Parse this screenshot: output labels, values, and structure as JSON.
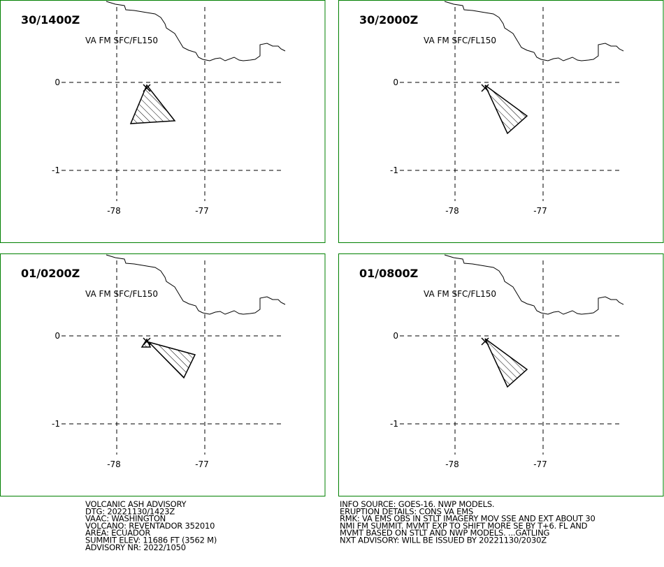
{
  "panels": [
    {
      "time": "30/1400Z",
      "level": "VA FM SFC/FL150"
    },
    {
      "time": "30/2000Z",
      "level": "VA FM SFC/FL150"
    },
    {
      "time": "01/0200Z",
      "level": "VA FM SFC/FL150"
    },
    {
      "time": "01/0800Z",
      "level": "VA FM SFC/FL150"
    }
  ],
  "grid": {
    "lat": [
      0,
      -1
    ],
    "lon": [
      -78,
      -77
    ]
  },
  "advisory": {
    "left": [
      "VOLCANIC ASH ADVISORY",
      "DTG: 20221130/1423Z",
      "VAAC: WASHINGTON",
      "VOLCANO: REVENTADOR 352010",
      "AREA: ECUADOR",
      "SUMMIT ELEV: 11686 FT (3562 M)",
      "ADVISORY NR: 2022/1050"
    ],
    "right": [
      "INFO SOURCE: GOES-16. NWP MODELS.",
      "ERUPTION DETAILS: CONS VA EMS",
      "RMK: VA EMS OBS IN STLT IMAGERY MOV SSE AND EXT ABOUT 30",
      "NMI FM SUMMIT. MVMT EXP TO SHIFT MORE SE BY T+6. FL AND",
      "MVMT BASED ON STLT AND NWP MODELS. ...GATLING",
      "NXT ADVISORY: WILL BE ISSUED BY 20221130/2030Z"
    ]
  }
}
